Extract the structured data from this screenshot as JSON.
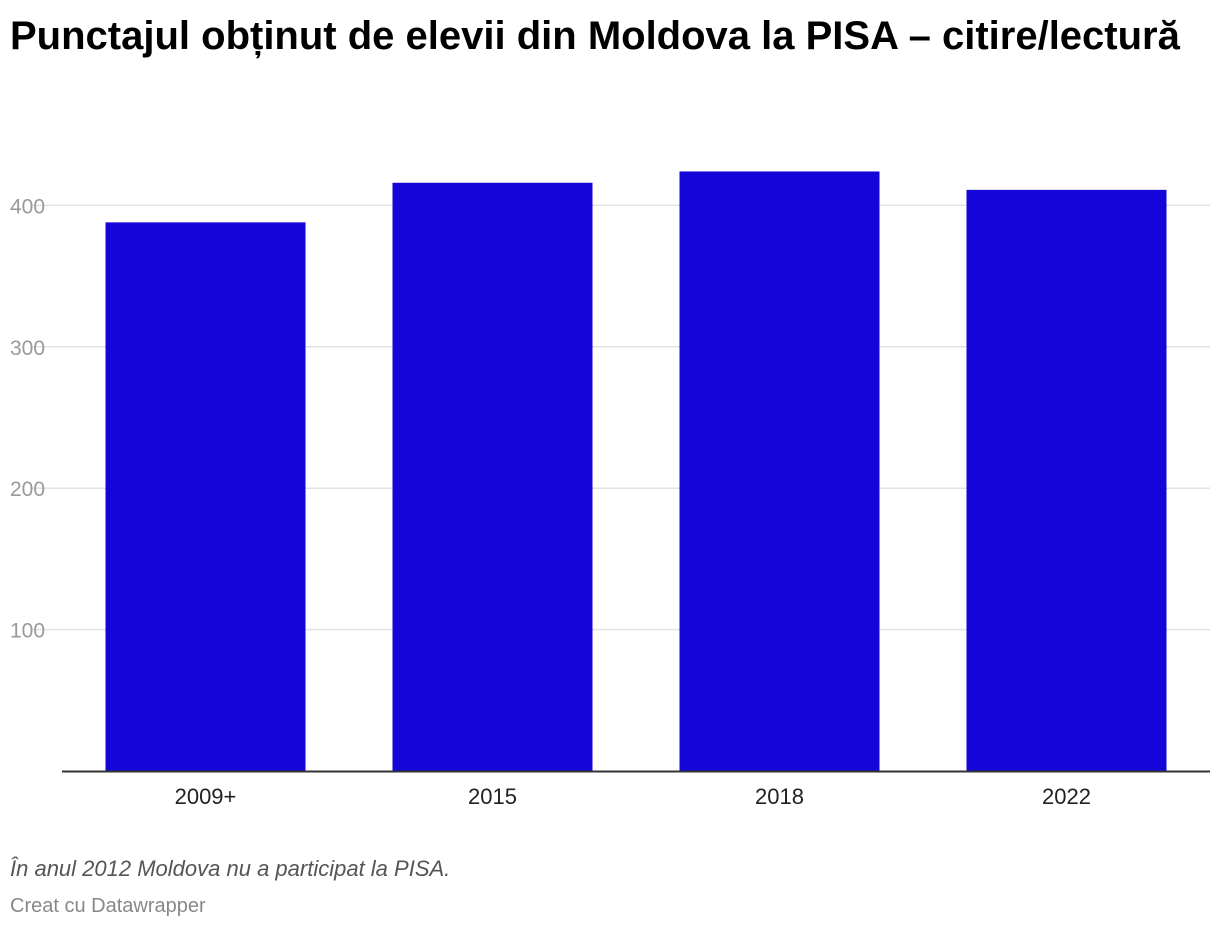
{
  "chart_data": {
    "type": "bar",
    "title": "Punctajul obținut de elevii din Moldova la PISA – citire/lectură",
    "categories": [
      "2009+",
      "2015",
      "2018",
      "2022"
    ],
    "values": [
      388,
      416,
      424,
      411
    ],
    "ylim": [
      0,
      440
    ],
    "yticks": [
      100,
      200,
      300,
      400
    ],
    "bar_color": "#1405d9",
    "grid": true,
    "note": "În anul 2012 Moldova nu a participat la PISA.",
    "credit": "Creat cu Datawrapper"
  }
}
